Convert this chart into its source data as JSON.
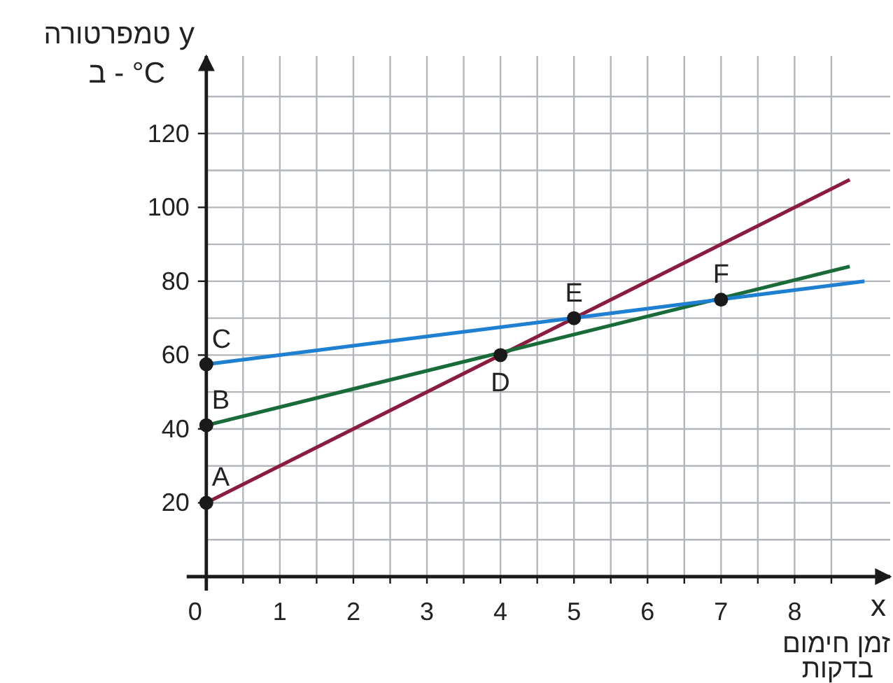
{
  "chart_data": {
    "type": "line",
    "xlabel": "x",
    "ylabel": "y",
    "annotations": [
      "טמפרטורה",
      "ב - °C",
      "זמן חימום",
      "בדקות",
      {
        "text": "A",
        "x": 0,
        "y": 20
      },
      {
        "text": "B",
        "x": 0,
        "y": 41
      },
      {
        "text": "C",
        "x": 0,
        "y": 57.5
      },
      {
        "text": "D",
        "x": 4,
        "y": 60
      },
      {
        "text": "E",
        "x": 5,
        "y": 70
      },
      {
        "text": "F",
        "x": 7,
        "y": 75
      }
    ],
    "series": [
      {
        "color": "#8b1c3f",
        "x": [
          0,
          8.75
        ],
        "values": [
          20,
          107.5
        ]
      },
      {
        "color": "#1a6b3a",
        "x": [
          0,
          8.75
        ],
        "values": [
          41,
          84
        ]
      },
      {
        "color": "#1f7fd0",
        "x": [
          0,
          8.95
        ],
        "values": [
          57.5,
          80
        ]
      },
      {
        "type": "scatter",
        "color": "#1a1a1a",
        "marker": "circle",
        "x": [
          0,
          0,
          0,
          4,
          5,
          7
        ],
        "values": [
          20,
          41,
          57.5,
          60,
          70,
          75
        ]
      }
    ],
    "xlim": [
      0,
      9.3
    ],
    "ylim": [
      0,
      141
    ],
    "xticks": [
      0,
      {
        "value": 0.5,
        "label": null
      },
      1,
      {
        "value": 1.5,
        "label": null
      },
      2,
      {
        "value": 2.5,
        "label": null
      },
      3,
      {
        "value": 3.5,
        "label": null
      },
      4,
      {
        "value": 4.5,
        "label": null
      },
      5,
      {
        "value": 5.5,
        "label": null
      },
      6,
      {
        "value": 6.5,
        "label": null
      },
      7,
      {
        "value": 7.5,
        "label": null
      },
      8,
      {
        "value": 8.5,
        "label": null
      }
    ],
    "yticks": [
      {
        "value": 10,
        "label": null
      },
      20,
      {
        "value": 30,
        "label": null
      },
      40,
      {
        "value": 50,
        "label": null
      },
      60,
      {
        "value": 70,
        "label": null
      },
      80,
      {
        "value": 90,
        "label": null
      },
      100,
      {
        "value": 110,
        "label": null
      },
      120,
      {
        "value": 130,
        "label": null
      }
    ],
    "grid": true
  }
}
